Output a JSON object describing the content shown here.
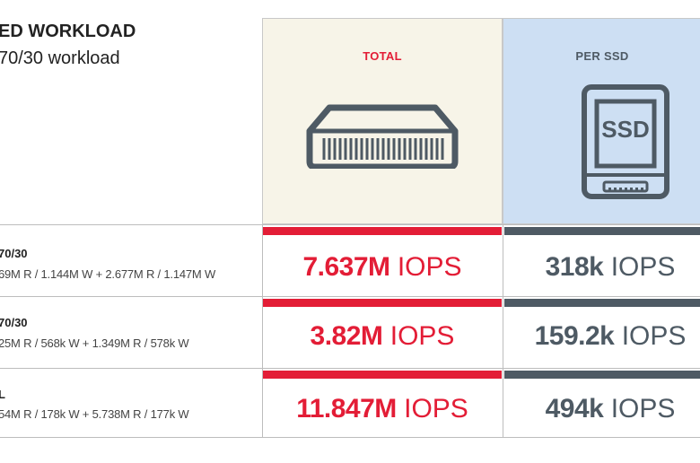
{
  "header": {
    "title": "ED WORKLOAD",
    "subtitle": "70/30 workload"
  },
  "columns": {
    "total_label": "TOTAL",
    "per_ssd_label": "PER SSD",
    "ssd_icon_text": "SSD",
    "total_icon": "storage-server-icon",
    "per_ssd_icon": "ssd-drive-icon"
  },
  "colors": {
    "total_accent": "#e31d36",
    "ssd_accent": "#4e5a64",
    "total_bg": "#f7f4e8",
    "ssd_bg": "#cddff3"
  },
  "rows": [
    {
      "name": "70/30",
      "detail": "69M R / 1.144M W + 2.677M R / 1.147M W",
      "total_value": "7.637M",
      "total_unit": " IOPS",
      "ssd_value": "318k",
      "ssd_unit": " IOPS"
    },
    {
      "name": "70/30",
      "detail": "25M R / 568k W + 1.349M R / 578k W",
      "total_value": "3.82M",
      "total_unit": " IOPS",
      "ssd_value": "159.2k",
      "ssd_unit": " IOPS"
    },
    {
      "name": "L",
      "detail": "54M R / 178k W + 5.738M R / 177k W",
      "total_value": "11.847M",
      "total_unit": " IOPS",
      "ssd_value": "494k",
      "ssd_unit": " IOPS"
    }
  ]
}
